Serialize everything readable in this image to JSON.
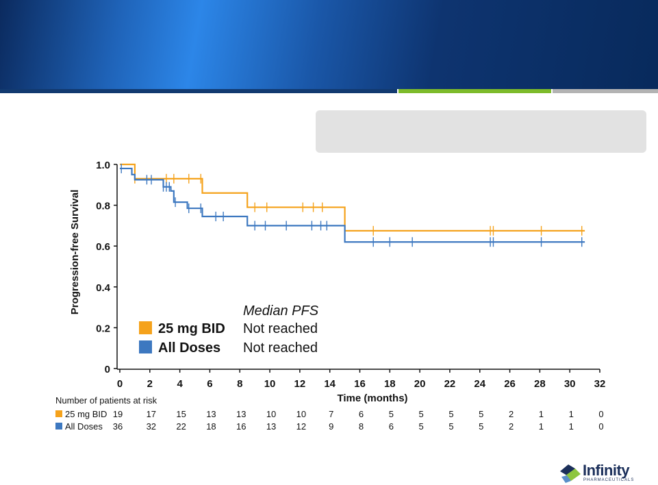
{
  "chart_data": {
    "type": "line",
    "title": "",
    "xlabel": "Time (months)",
    "ylabel": "Progression-free Survival",
    "xlim": [
      0,
      32
    ],
    "ylim": [
      0,
      1.0
    ],
    "x_ticks": [
      0,
      2,
      4,
      6,
      8,
      10,
      12,
      14,
      16,
      18,
      20,
      22,
      24,
      26,
      28,
      30,
      32
    ],
    "y_ticks": [
      0,
      0.2,
      0.4,
      0.6,
      0.8,
      1.0
    ],
    "y_tick_labels": [
      "0",
      "0.2",
      "0.4",
      "0.6",
      "0.8",
      "1.0"
    ],
    "legend_header": "Median PFS",
    "series": [
      {
        "name": "25 mg BID",
        "color": "#f5a21b",
        "median": "Not reached",
        "steps": [
          [
            0,
            1.0
          ],
          [
            1.0,
            0.93
          ],
          [
            5.5,
            0.86
          ],
          [
            8.5,
            0.79
          ],
          [
            15.0,
            0.675
          ],
          [
            31.0,
            0.675
          ]
        ],
        "censor_times": [
          1.0,
          3.1,
          3.6,
          4.6,
          5.4,
          9.0,
          9.8,
          12.2,
          12.9,
          13.5,
          16.9,
          24.7,
          24.9,
          28.1,
          30.8
        ]
      },
      {
        "name": "All Doses",
        "color": "#3d78c0",
        "median": "Not reached",
        "steps": [
          [
            0,
            0.98
          ],
          [
            0.8,
            0.95
          ],
          [
            1.0,
            0.925
          ],
          [
            2.9,
            0.89
          ],
          [
            3.4,
            0.87
          ],
          [
            3.6,
            0.815
          ],
          [
            4.5,
            0.785
          ],
          [
            5.5,
            0.745
          ],
          [
            8.5,
            0.7
          ],
          [
            15.0,
            0.62
          ],
          [
            31.0,
            0.62
          ]
        ],
        "censor_times": [
          0.1,
          1.8,
          2.1,
          2.9,
          3.1,
          3.3,
          3.7,
          4.6,
          5.4,
          6.4,
          6.9,
          9.0,
          9.7,
          11.1,
          12.8,
          13.4,
          13.8,
          16.9,
          18.0,
          19.5,
          24.7,
          24.9,
          28.1,
          30.8
        ]
      }
    ],
    "risk_table": {
      "title": "Number of patients at risk",
      "rows": [
        {
          "name": "25 mg BID",
          "color": "#f5a21b",
          "values": [
            "19",
            "17",
            "15",
            "13",
            "13",
            "10",
            "10",
            "7",
            "6",
            "5",
            "5",
            "5",
            "5",
            "2",
            "1",
            "1",
            "0"
          ]
        },
        {
          "name": "All Doses",
          "color": "#3d78c0",
          "values": [
            "36",
            "32",
            "22",
            "18",
            "16",
            "13",
            "12",
            "9",
            "8",
            "6",
            "5",
            "5",
            "5",
            "2",
            "1",
            "1",
            "0"
          ]
        }
      ]
    }
  },
  "logo": {
    "text": "Infinity",
    "sub": "PHARMACEUTICALS"
  }
}
